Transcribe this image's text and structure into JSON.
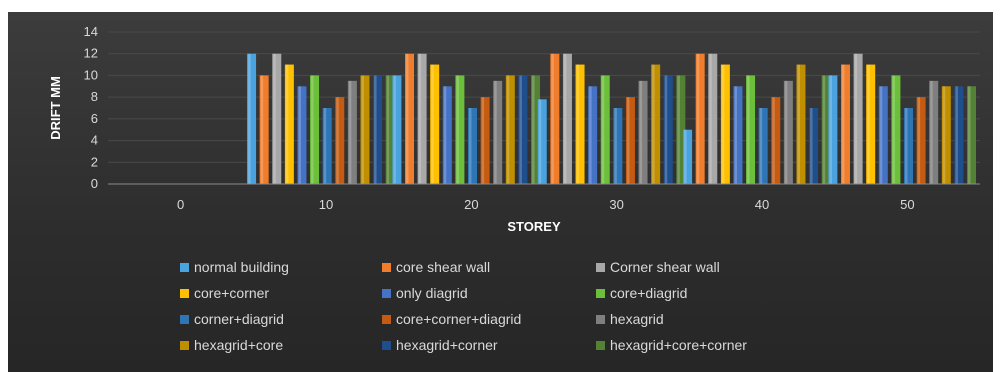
{
  "chart_data": {
    "type": "bar",
    "title": "",
    "xlabel": "STOREY",
    "ylabel": "DRIFT MM",
    "ylim": [
      0,
      14
    ],
    "yticks": [
      "0",
      "2",
      "4",
      "6",
      "8",
      "10",
      "12",
      "14"
    ],
    "categories": [
      "0",
      "10",
      "20",
      "30",
      "40",
      "50"
    ],
    "grid": true,
    "legend_position": "bottom",
    "series": [
      {
        "name": "normal building",
        "color": "#4aa3df",
        "values": [
          0,
          12,
          10,
          7.8,
          5,
          10
        ]
      },
      {
        "name": "core shear wall",
        "color": "#f07d2b",
        "values": [
          0,
          10,
          12,
          12,
          12,
          11
        ]
      },
      {
        "name": "Corner shear wall",
        "color": "#a8a8a8",
        "values": [
          0,
          12,
          12,
          12,
          12,
          12
        ]
      },
      {
        "name": "core+corner",
        "color": "#ffc000",
        "values": [
          0,
          11,
          11,
          11,
          11,
          11
        ]
      },
      {
        "name": "only diagrid",
        "color": "#4472c4",
        "values": [
          0,
          9,
          9,
          9,
          9,
          9
        ]
      },
      {
        "name": "core+diagrid",
        "color": "#6cbf3a",
        "values": [
          0,
          10,
          10,
          10,
          10,
          10
        ]
      },
      {
        "name": "corner+diagrid",
        "color": "#2e75b6",
        "values": [
          0,
          7,
          7,
          7,
          7,
          7
        ]
      },
      {
        "name": "core+corner+diagrid",
        "color": "#c55a11",
        "values": [
          0,
          8,
          8,
          8,
          8,
          8
        ]
      },
      {
        "name": "hexagrid",
        "color": "#7f7f7f",
        "values": [
          0,
          9.5,
          9.5,
          9.5,
          9.5,
          9.5
        ]
      },
      {
        "name": "hexagrid+core",
        "color": "#bf8f00",
        "values": [
          0,
          10,
          10,
          11,
          11,
          9
        ]
      },
      {
        "name": "hexagrid+corner",
        "color": "#1f4e8c",
        "values": [
          0,
          10,
          10,
          10,
          7,
          9
        ]
      },
      {
        "name": "hexagrid+core+corner",
        "color": "#548235",
        "values": [
          0,
          10,
          10,
          10,
          10,
          9
        ]
      }
    ]
  }
}
